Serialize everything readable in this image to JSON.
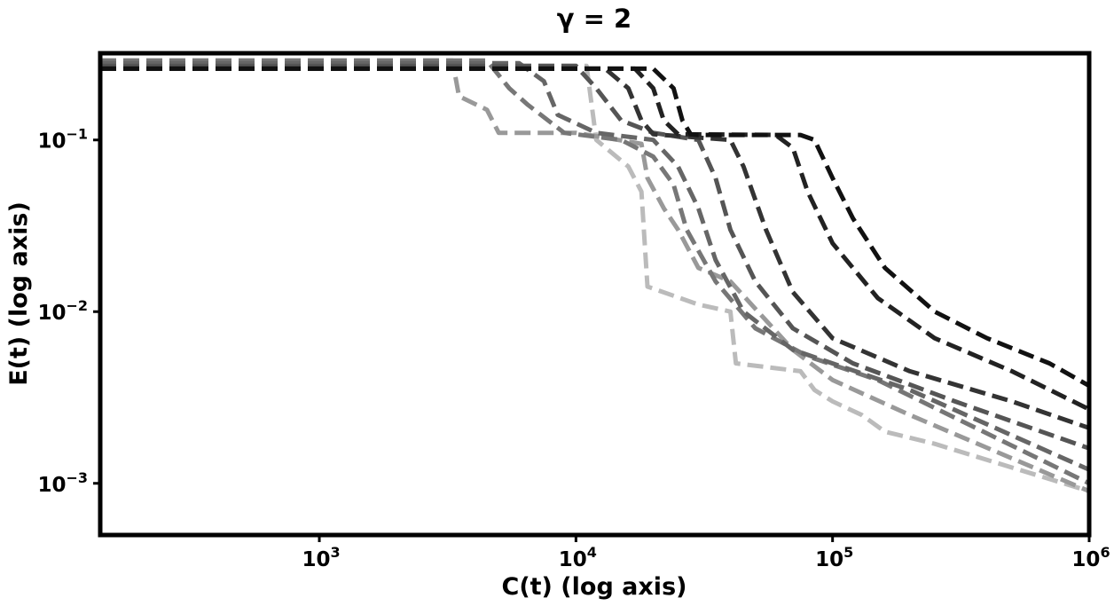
{
  "chart_data": {
    "type": "line",
    "title": "γ = 2",
    "xlabel": "C(t) (log axis)",
    "ylabel": "E(t) (log axis)",
    "xscale": "log",
    "yscale": "log",
    "xlim": [
      140,
      1000000
    ],
    "ylim": [
      0.0005,
      0.32
    ],
    "grid": false,
    "line_style": "dashed",
    "x_ticks": [
      {
        "value": 1000,
        "base": "10",
        "exp": "3"
      },
      {
        "value": 10000,
        "base": "10",
        "exp": "4"
      },
      {
        "value": 100000,
        "base": "10",
        "exp": "5"
      },
      {
        "value": 1000000,
        "base": "10",
        "exp": "6"
      }
    ],
    "y_ticks": [
      {
        "value": 0.1,
        "base": "10",
        "exp": "−1"
      },
      {
        "value": 0.01,
        "base": "10",
        "exp": "−2"
      },
      {
        "value": 0.001,
        "base": "10",
        "exp": "−3"
      }
    ],
    "series": [
      {
        "color": "#111111",
        "x": [
          140,
          20000,
          24000,
          26000,
          28000,
          30000,
          75000,
          85000,
          100000,
          120000,
          160000,
          250000,
          400000,
          700000,
          1000000
        ],
        "y": [
          0.26,
          0.26,
          0.2,
          0.13,
          0.108,
          0.107,
          0.107,
          0.1,
          0.06,
          0.035,
          0.018,
          0.01,
          0.007,
          0.005,
          0.0037
        ]
      },
      {
        "color": "#222222",
        "x": [
          140,
          17000,
          20000,
          22000,
          25000,
          60000,
          70000,
          80000,
          100000,
          150000,
          250000,
          500000,
          1000000
        ],
        "y": [
          0.26,
          0.26,
          0.2,
          0.13,
          0.108,
          0.107,
          0.09,
          0.05,
          0.025,
          0.012,
          0.007,
          0.0045,
          0.0027
        ]
      },
      {
        "color": "#333333",
        "x": [
          140,
          13000,
          16000,
          18000,
          20000,
          40000,
          45000,
          55000,
          70000,
          100000,
          200000,
          500000,
          1000000
        ],
        "y": [
          0.26,
          0.26,
          0.2,
          0.13,
          0.108,
          0.1,
          0.07,
          0.03,
          0.013,
          0.007,
          0.0045,
          0.003,
          0.0021
        ]
      },
      {
        "color": "#555555",
        "x": [
          140,
          10000,
          12000,
          15000,
          20000,
          30000,
          35000,
          40000,
          50000,
          70000,
          120000,
          300000,
          1000000
        ],
        "y": [
          0.27,
          0.27,
          0.2,
          0.13,
          0.11,
          0.1,
          0.06,
          0.03,
          0.015,
          0.008,
          0.005,
          0.003,
          0.0016
        ]
      },
      {
        "color": "#666666",
        "x": [
          140,
          6000,
          7500,
          8500,
          12000,
          20000,
          25000,
          30000,
          35000,
          45000,
          70000,
          200000,
          1000000
        ],
        "y": [
          0.28,
          0.28,
          0.22,
          0.14,
          0.11,
          0.1,
          0.07,
          0.04,
          0.02,
          0.01,
          0.006,
          0.0035,
          0.0012
        ]
      },
      {
        "color": "#777777",
        "x": [
          140,
          4500,
          5500,
          6500,
          9000,
          15000,
          20000,
          24000,
          27000,
          35000,
          50000,
          80000,
          150000,
          1000000
        ],
        "y": [
          0.29,
          0.29,
          0.2,
          0.16,
          0.11,
          0.1,
          0.08,
          0.055,
          0.03,
          0.015,
          0.008,
          0.0055,
          0.004,
          0.001
        ]
      },
      {
        "color": "#999999",
        "x": [
          140,
          3300,
          3500,
          4500,
          5000,
          7000,
          10000,
          18000,
          19000,
          22000,
          25000,
          30000,
          40000,
          70000,
          100000,
          200000,
          1000000
        ],
        "y": [
          0.29,
          0.29,
          0.18,
          0.15,
          0.11,
          0.11,
          0.11,
          0.095,
          0.06,
          0.04,
          0.03,
          0.018,
          0.015,
          0.006,
          0.004,
          0.0025,
          0.0009
        ]
      },
      {
        "color": "#bbbbbb",
        "x": [
          140,
          11000,
          12000,
          16000,
          18000,
          19000,
          30000,
          40000,
          42000,
          75000,
          85000,
          100000,
          130000,
          160000,
          250000,
          1000000
        ],
        "y": [
          0.27,
          0.27,
          0.1,
          0.07,
          0.05,
          0.014,
          0.011,
          0.01,
          0.005,
          0.0045,
          0.0035,
          0.003,
          0.0025,
          0.002,
          0.0017,
          0.0009
        ]
      }
    ]
  }
}
